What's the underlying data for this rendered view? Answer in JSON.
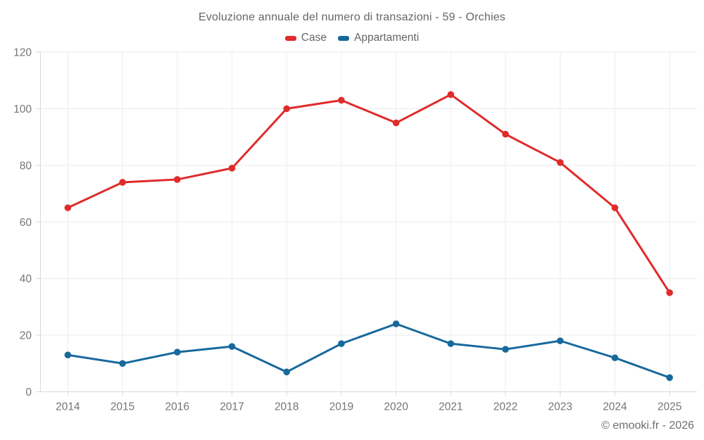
{
  "page": {
    "title": "Evoluzione annuale del numero di transazioni - 59 - Orchies"
  },
  "footer": {
    "credit": "© emooki.fr - 2026"
  },
  "chart_data": {
    "type": "line",
    "title": "Evoluzione annuale del numero di transazioni - 59 - Orchies",
    "categories": [
      "2014",
      "2015",
      "2016",
      "2017",
      "2018",
      "2019",
      "2020",
      "2021",
      "2022",
      "2023",
      "2024",
      "2025"
    ],
    "series": [
      {
        "name": "Case",
        "color": "#e02b2b",
        "values": [
          65,
          74,
          75,
          79,
          100,
          103,
          95,
          105,
          91,
          81,
          65,
          35
        ]
      },
      {
        "name": "Appartamenti",
        "color": "#17699d",
        "values": [
          13,
          10,
          14,
          16,
          7,
          17,
          24,
          17,
          15,
          18,
          12,
          5
        ]
      }
    ],
    "xlabel": "",
    "ylabel": "",
    "ylim": [
      0,
      120
    ],
    "y_ticks": [
      0,
      20,
      40,
      60,
      80,
      100,
      120
    ],
    "grid": true,
    "legend_position": "top"
  },
  "colors": {
    "background": "#ffffff",
    "gridline": "#ececec",
    "axis_line": "#d9d9d9",
    "tick_label": "#757575",
    "title_text": "#636669",
    "footer_text": "#6d6f71"
  }
}
